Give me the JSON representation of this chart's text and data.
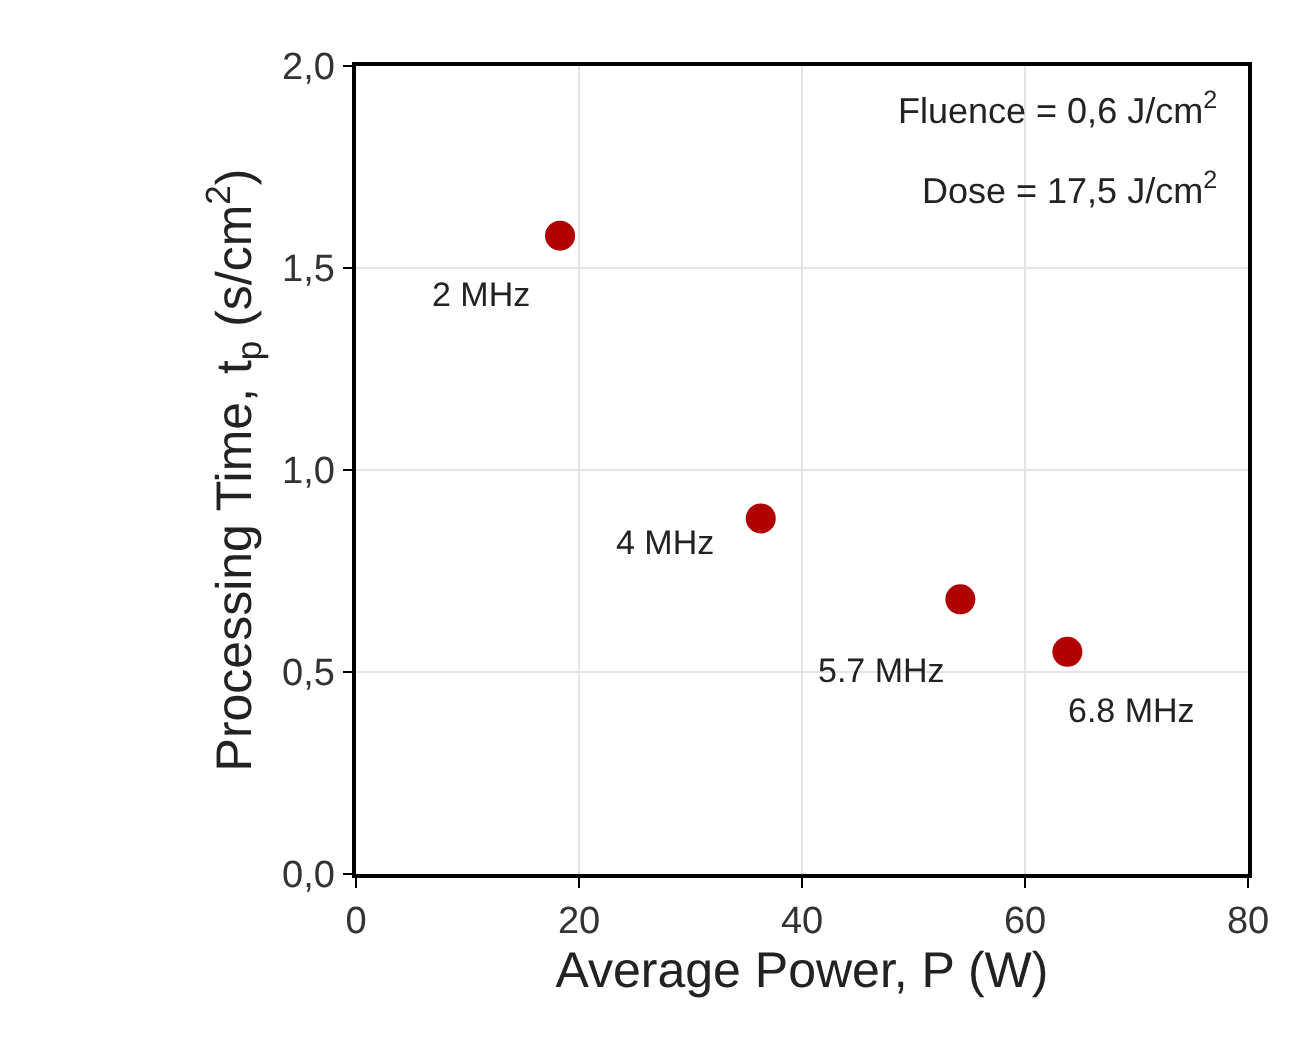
{
  "chart_data": {
    "type": "scatter",
    "xlabel": "Average Power, P (W)",
    "ylabel": "Processing Time, t$_{p}$ (s/cm$^{2}$)",
    "x": [
      18.3,
      36.3,
      54.2,
      63.8
    ],
    "series": [
      {
        "color": "#b00000",
        "values": [
          1.58,
          0.88,
          0.68,
          0.55
        ]
      }
    ],
    "xlim": [
      0,
      80
    ],
    "xticks": [
      0,
      20,
      40,
      60,
      80
    ],
    "ylim": [
      0,
      2
    ],
    "yticks": [
      {
        "value": 0,
        "label": "0,0"
      },
      {
        "value": 0.5,
        "label": "0,5"
      },
      {
        "value": 1,
        "label": "1,0"
      },
      {
        "value": 1.5,
        "label": "1,5"
      },
      {
        "value": 2,
        "label": "2,0"
      }
    ],
    "grid": true,
    "marker": "circle",
    "annotations": [
      {
        "text": "2 MHz",
        "x": 18.3,
        "y": 1.58
      },
      {
        "text": "4 MHz",
        "x": 36.3,
        "y": 0.88
      },
      {
        "text": "5.7 MHz",
        "x": 54.2,
        "y": 0.68
      },
      {
        "text": "6.8 MHz",
        "x": 63.8,
        "y": 0.55
      },
      "Fluence = 0,6 J/cm$^{2}$",
      "Dose = 17,5 J/cm$^{2}$"
    ]
  }
}
